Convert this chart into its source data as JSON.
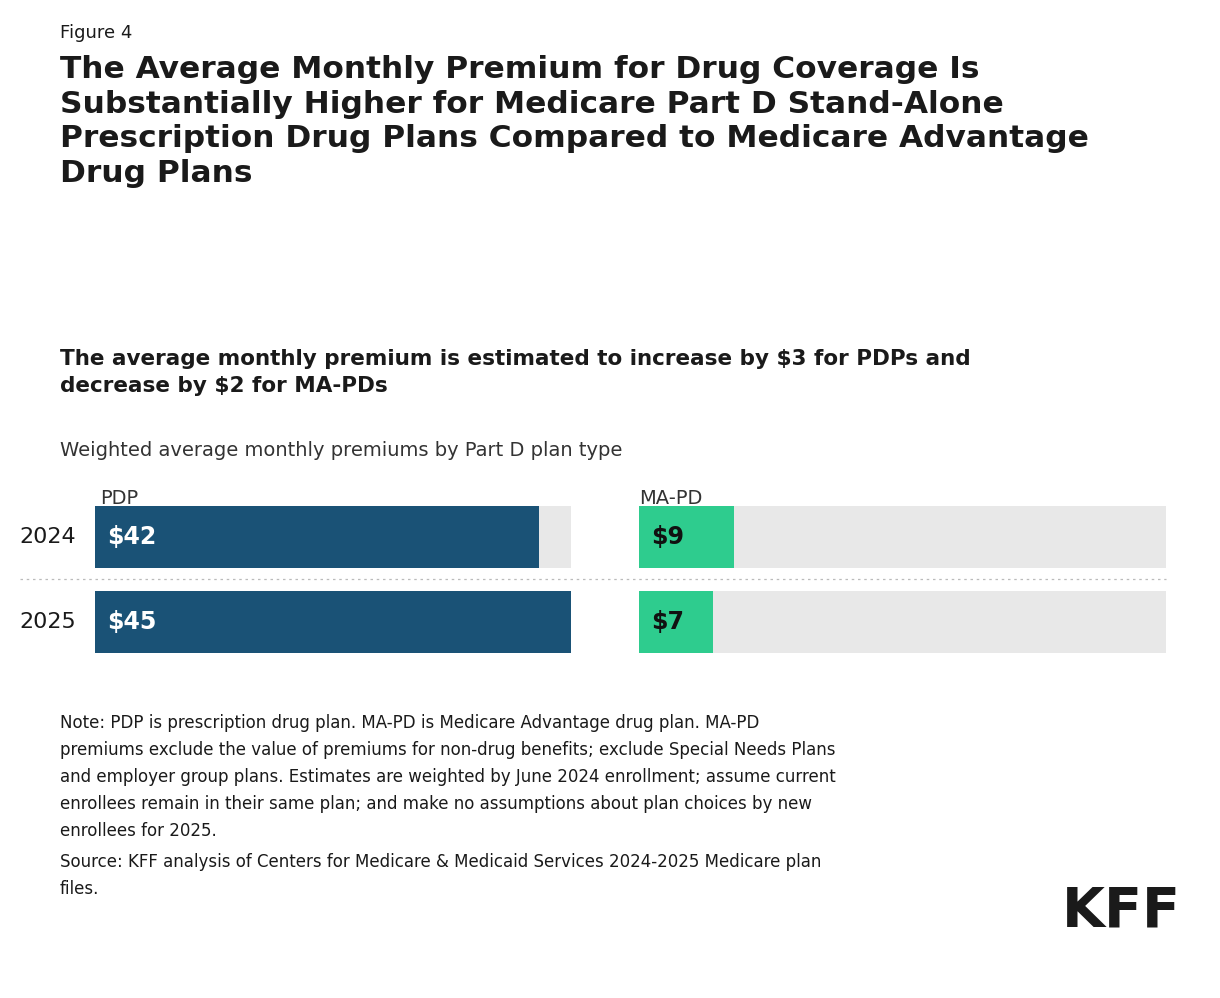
{
  "figure_label": "Figure 4",
  "title_line1": "The Average Monthly Premium for Drug Coverage Is",
  "title_line2": "Substantially Higher for Medicare Part D Stand-Alone",
  "title_line3": "Prescription Drug Plans Compared to Medicare Advantage",
  "title_line4": "Drug Plans",
  "subtitle_line1": "The average monthly premium is estimated to increase by $3 for PDPs and",
  "subtitle_line2": "decrease by $2 for MA-PDs",
  "chart_label": "Weighted average monthly premiums by Part D plan type",
  "col_label_pdp": "PDP",
  "col_label_mapd": "MA-PD",
  "years": [
    "2024",
    "2025"
  ],
  "pdp_values": [
    42,
    45
  ],
  "mapd_values": [
    9,
    7
  ],
  "pdp_scale_max": 50,
  "mapd_scale_max": 50,
  "pdp_color": "#1a5276",
  "mapd_color": "#2ecc8e",
  "bg_bar_color": "#e8e8e8",
  "note_text": "Note: PDP is prescription drug plan. MA-PD is Medicare Advantage drug plan. MA-PD\npremiums exclude the value of premiums for non-drug benefits; exclude Special Needs Plans\nand employer group plans. Estimates are weighted by June 2024 enrollment; assume current\nenrollees remain in their same plan; and make no assumptions about plan choices by new\nenrollees for 2025.",
  "source_text": "Source: KFF analysis of Centers for Medicare & Medicaid Services 2024-2025 Medicare plan\nfiles.",
  "kff_logo": "KFF",
  "background_color": "#ffffff",
  "text_color": "#1a1a1a",
  "separator_color": "#bbbbbb"
}
